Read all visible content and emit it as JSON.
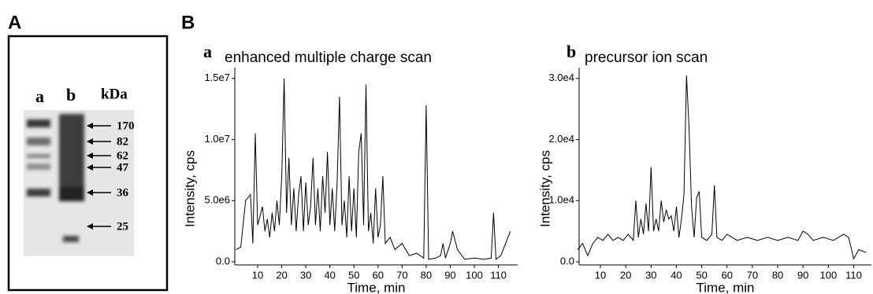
{
  "figure_labels": [
    "A",
    "B"
  ],
  "gel": {
    "lanes": [
      "a",
      "b"
    ],
    "unit": "kDa",
    "markers": [
      "170",
      "82",
      "62",
      "47",
      "36",
      "25"
    ]
  },
  "chart_data": [
    {
      "type": "line",
      "label": "a",
      "title": "enhanced multiple charge scan",
      "xlabel": "Time, min",
      "ylabel": "Intensity, cps",
      "color": "#000000",
      "x": [
        1,
        3,
        5,
        7,
        8,
        9,
        10,
        12,
        13,
        14,
        15,
        16,
        17,
        18,
        19,
        20,
        21,
        22,
        23,
        24,
        25,
        26,
        27,
        28,
        29,
        30,
        31,
        32,
        33,
        34,
        35,
        36,
        37,
        38,
        39,
        40,
        41,
        42,
        43,
        44,
        45,
        46,
        47,
        48,
        49,
        50,
        51,
        52,
        53,
        54,
        55,
        56,
        57,
        58,
        59,
        60,
        61,
        62,
        63,
        65,
        67,
        70,
        73,
        76,
        79,
        80,
        81,
        84,
        86,
        87,
        88,
        90,
        91,
        93,
        96,
        100,
        104,
        107,
        108,
        109,
        111,
        113,
        115
      ],
      "values": [
        1000000,
        1200000,
        5000000,
        5500000,
        1500000,
        10500000,
        3000000,
        4500000,
        2500000,
        3500000,
        2000000,
        4000000,
        2500000,
        5000000,
        3000000,
        7000000,
        15000000,
        4000000,
        8500000,
        3000000,
        6000000,
        2500000,
        5500000,
        7000000,
        2500000,
        6500000,
        3000000,
        4500000,
        8500000,
        3000000,
        6000000,
        2500000,
        7000000,
        4000000,
        9000000,
        3000000,
        6000000,
        2500000,
        6500000,
        13500000,
        3000000,
        5000000,
        2000000,
        7000000,
        2500000,
        6000000,
        2000000,
        9000000,
        10500000,
        3000000,
        14500000,
        2500000,
        4000000,
        1500000,
        6000000,
        2000000,
        3000000,
        7000000,
        1500000,
        2000000,
        1000000,
        1500000,
        500000,
        700000,
        300000,
        12800000,
        200000,
        300000,
        500000,
        1500000,
        300000,
        1500000,
        2500000,
        1000000,
        200000,
        300000,
        200000,
        300000,
        4000000,
        200000,
        500000,
        1500000,
        2500000
      ],
      "xlim": [
        0.5,
        118
      ],
      "ylim": [
        0,
        15500000
      ],
      "xticks": [
        10,
        20,
        30,
        40,
        50,
        60,
        70,
        80,
        90,
        100,
        110
      ],
      "yticks": [
        {
          "value": 0,
          "label": "0.0"
        },
        {
          "value": 5000000,
          "label": "5.0e6"
        },
        {
          "value": 10000000,
          "label": "1.0e7"
        },
        {
          "value": 15000000,
          "label": "1.5e7"
        }
      ]
    },
    {
      "type": "line",
      "label": "b",
      "title": "precursor ion scan",
      "xlabel": "Time, min",
      "ylabel": "Intensity, cps",
      "color": "#000000",
      "x": [
        1,
        3,
        5,
        7,
        9,
        11,
        13,
        15,
        17,
        19,
        21,
        23,
        24,
        25,
        26,
        27,
        28,
        29,
        30,
        31,
        32,
        33,
        34,
        35,
        36,
        37,
        38,
        39,
        40,
        41,
        42,
        43,
        44,
        45,
        46,
        47,
        48,
        49,
        50,
        52,
        54,
        55,
        56,
        58,
        60,
        64,
        68,
        72,
        76,
        80,
        84,
        88,
        90,
        92,
        94,
        98,
        102,
        106,
        108,
        110,
        112,
        115
      ],
      "values": [
        2000,
        3000,
        1000,
        3000,
        4000,
        3500,
        4500,
        3500,
        4000,
        3500,
        4500,
        3500,
        10000,
        4000,
        7000,
        4500,
        9500,
        5000,
        15500,
        5000,
        7000,
        5000,
        10000,
        6500,
        8500,
        7000,
        7500,
        5000,
        9000,
        4000,
        7000,
        11000,
        30500,
        22000,
        9000,
        4000,
        10500,
        11500,
        4000,
        3500,
        4500,
        12500,
        4000,
        3500,
        4500,
        3500,
        4000,
        3500,
        4000,
        3500,
        4000,
        3500,
        5000,
        4500,
        3500,
        4000,
        3500,
        4500,
        4000,
        500,
        2000,
        1500
      ],
      "xlim": [
        1.6,
        117
      ],
      "ylim": [
        0,
        31000
      ],
      "xticks": [
        10,
        20,
        30,
        40,
        50,
        60,
        70,
        80,
        90,
        100,
        110
      ],
      "yticks": [
        {
          "value": 0,
          "label": "0.0"
        },
        {
          "value": 10000,
          "label": "1.0e4"
        },
        {
          "value": 20000,
          "label": "2.0e4"
        },
        {
          "value": 30000,
          "label": "3.0e4"
        }
      ]
    }
  ]
}
